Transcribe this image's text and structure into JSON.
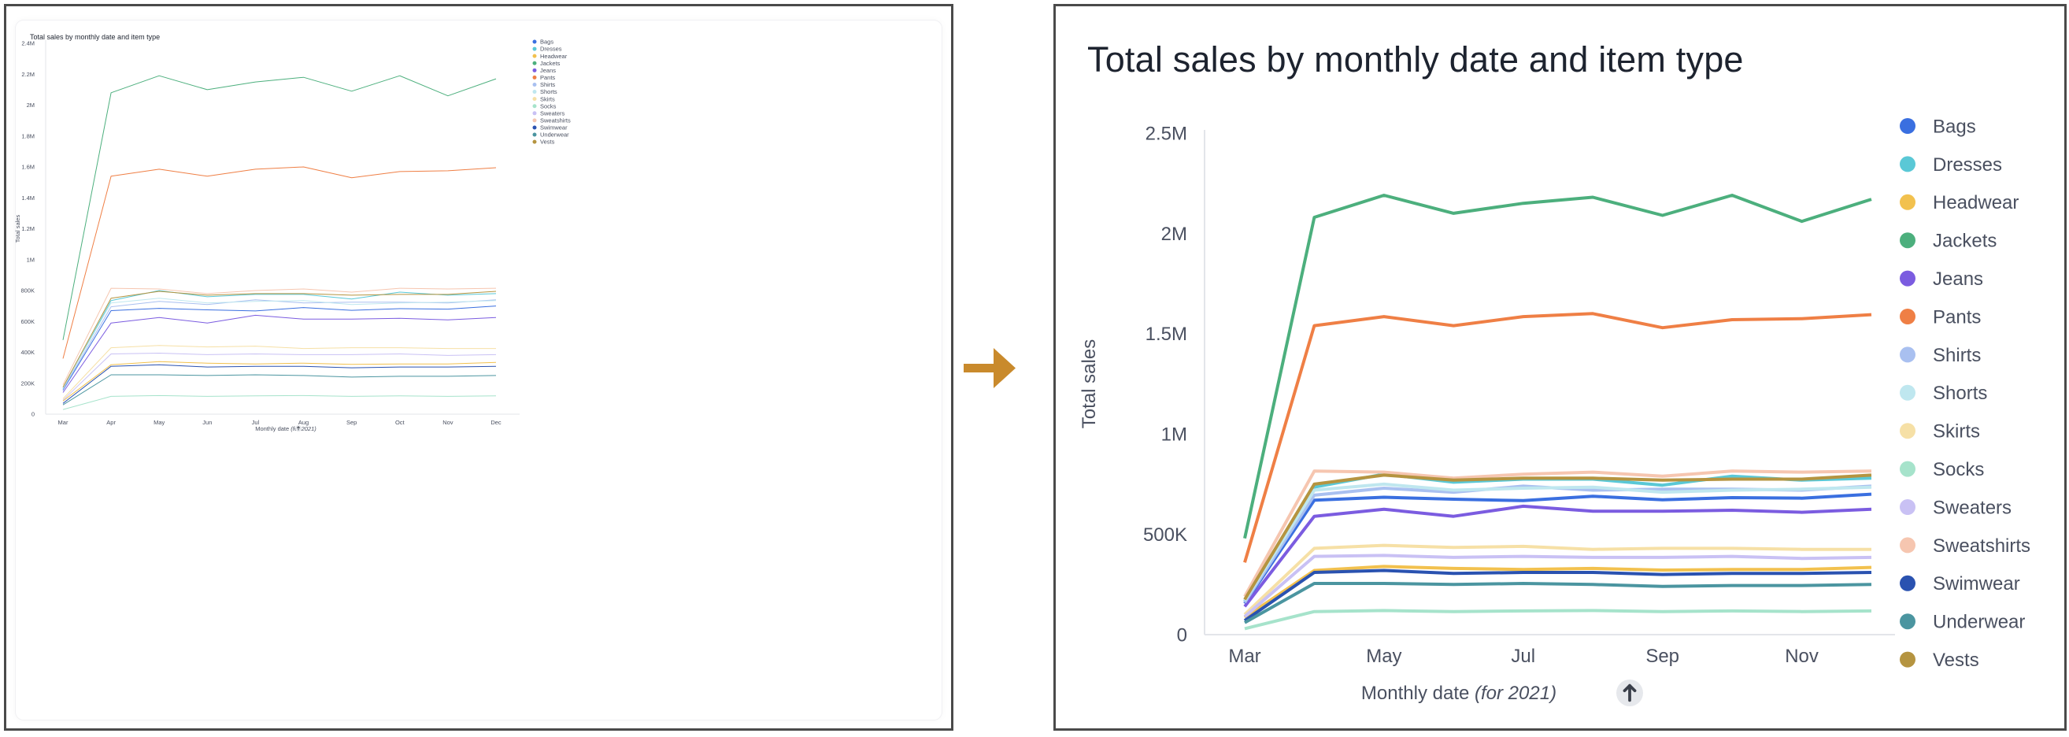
{
  "chart_data": [
    {
      "type": "line",
      "title": "Total sales by monthly date and item type",
      "xlabel": "Monthly date",
      "xlabel_qualifier": "(for 2021)",
      "ylabel": "Total sales",
      "categories": [
        "Mar",
        "Apr",
        "May",
        "Jun",
        "Jul",
        "Aug",
        "Sep",
        "Oct",
        "Nov",
        "Dec"
      ],
      "y_ticks": [
        {
          "value": 0,
          "label": "0"
        },
        {
          "value": 200000,
          "label": "200K"
        },
        {
          "value": 400000,
          "label": "400K"
        },
        {
          "value": 600000,
          "label": "600K"
        },
        {
          "value": 800000,
          "label": "800K"
        },
        {
          "value": 1000000,
          "label": "1M"
        },
        {
          "value": 1200000,
          "label": "1.2M"
        },
        {
          "value": 1400000,
          "label": "1.4M"
        },
        {
          "value": 1600000,
          "label": "1.6M"
        },
        {
          "value": 1800000,
          "label": "1.8M"
        },
        {
          "value": 2000000,
          "label": "2M"
        },
        {
          "value": 2200000,
          "label": "2.2M"
        },
        {
          "value": 2400000,
          "label": "2.4M"
        }
      ],
      "x_tick_labels": [
        "Mar",
        "Apr",
        "May",
        "Jun",
        "Jul",
        "Aug",
        "Sep",
        "Oct",
        "Nov",
        "Dec"
      ],
      "ylim": [
        0,
        2400000
      ],
      "grid": false,
      "legend_position": "right",
      "series": [
        {
          "name": "Bags",
          "color": "#3a6fe0",
          "values": [
            155000,
            670000,
            685000,
            675000,
            668000,
            690000,
            672000,
            683000,
            680000,
            700000
          ]
        },
        {
          "name": "Dresses",
          "color": "#5ac8d6",
          "values": [
            165000,
            735000,
            800000,
            760000,
            775000,
            775000,
            745000,
            790000,
            770000,
            780000
          ]
        },
        {
          "name": "Headwear",
          "color": "#f2c14e",
          "values": [
            85000,
            320000,
            340000,
            330000,
            325000,
            330000,
            322000,
            325000,
            325000,
            335000
          ]
        },
        {
          "name": "Jackets",
          "color": "#4caf7d",
          "values": [
            480000,
            2080000,
            2190000,
            2100000,
            2150000,
            2180000,
            2090000,
            2190000,
            2060000,
            2170000
          ]
        },
        {
          "name": "Jeans",
          "color": "#7b5ce0",
          "values": [
            140000,
            590000,
            625000,
            590000,
            640000,
            615000,
            615000,
            620000,
            610000,
            625000
          ]
        },
        {
          "name": "Pants",
          "color": "#ef7f45",
          "values": [
            360000,
            1540000,
            1585000,
            1540000,
            1585000,
            1600000,
            1530000,
            1570000,
            1575000,
            1595000
          ]
        },
        {
          "name": "Shirts",
          "color": "#a9c0f0",
          "values": [
            160000,
            695000,
            730000,
            710000,
            740000,
            720000,
            725000,
            725000,
            720000,
            740000
          ]
        },
        {
          "name": "Shorts",
          "color": "#bfe7ef",
          "values": [
            170000,
            720000,
            750000,
            720000,
            730000,
            735000,
            710000,
            720000,
            725000,
            735000
          ]
        },
        {
          "name": "Skirts",
          "color": "#f6e0a6",
          "values": [
            100000,
            430000,
            445000,
            435000,
            440000,
            425000,
            430000,
            430000,
            425000,
            425000
          ]
        },
        {
          "name": "Socks",
          "color": "#a6e3cb",
          "values": [
            30000,
            115000,
            120000,
            115000,
            118000,
            120000,
            115000,
            118000,
            115000,
            118000
          ]
        },
        {
          "name": "Sweaters",
          "color": "#c9c1f4",
          "values": [
            90000,
            390000,
            395000,
            385000,
            390000,
            385000,
            385000,
            390000,
            380000,
            385000
          ]
        },
        {
          "name": "Sweatshirts",
          "color": "#f6c6b0",
          "values": [
            190000,
            815000,
            810000,
            780000,
            800000,
            810000,
            790000,
            815000,
            810000,
            815000
          ]
        },
        {
          "name": "Swimwear",
          "color": "#2a52b0",
          "values": [
            70000,
            310000,
            320000,
            305000,
            310000,
            310000,
            300000,
            305000,
            305000,
            310000
          ]
        },
        {
          "name": "Underwear",
          "color": "#4b95a0",
          "values": [
            60000,
            255000,
            255000,
            250000,
            255000,
            250000,
            240000,
            245000,
            245000,
            250000
          ]
        },
        {
          "name": "Vests",
          "color": "#b59440",
          "values": [
            175000,
            750000,
            795000,
            770000,
            780000,
            780000,
            770000,
            775000,
            775000,
            795000
          ]
        }
      ]
    },
    {
      "type": "line",
      "title": "Total sales by monthly date and item type",
      "xlabel": "Monthly date",
      "xlabel_qualifier": "(for 2021)",
      "ylabel": "Total sales",
      "categories": [
        "Mar",
        "Apr",
        "May",
        "Jun",
        "Jul",
        "Aug",
        "Sep",
        "Oct",
        "Nov",
        "Dec"
      ],
      "y_ticks": [
        {
          "value": 0,
          "label": "0"
        },
        {
          "value": 500000,
          "label": "500K"
        },
        {
          "value": 1000000,
          "label": "1M"
        },
        {
          "value": 1500000,
          "label": "1.5M"
        },
        {
          "value": 2000000,
          "label": "2M"
        },
        {
          "value": 2500000,
          "label": "2.5M"
        }
      ],
      "x_tick_labels": [
        "Mar",
        "",
        "May",
        "",
        "Jul",
        "",
        "Sep",
        "",
        "Nov",
        ""
      ],
      "ylim": [
        0,
        2500000
      ],
      "grid": false,
      "legend_position": "right",
      "series": [
        {
          "name": "Bags",
          "color": "#3a6fe0",
          "values": [
            155000,
            670000,
            685000,
            675000,
            668000,
            690000,
            672000,
            683000,
            680000,
            700000
          ]
        },
        {
          "name": "Dresses",
          "color": "#5ac8d6",
          "values": [
            165000,
            735000,
            800000,
            760000,
            775000,
            775000,
            745000,
            790000,
            770000,
            780000
          ]
        },
        {
          "name": "Headwear",
          "color": "#f2c14e",
          "values": [
            85000,
            320000,
            340000,
            330000,
            325000,
            330000,
            322000,
            325000,
            325000,
            335000
          ]
        },
        {
          "name": "Jackets",
          "color": "#4caf7d",
          "values": [
            480000,
            2080000,
            2190000,
            2100000,
            2150000,
            2180000,
            2090000,
            2190000,
            2060000,
            2170000
          ]
        },
        {
          "name": "Jeans",
          "color": "#7b5ce0",
          "values": [
            140000,
            590000,
            625000,
            590000,
            640000,
            615000,
            615000,
            620000,
            610000,
            625000
          ]
        },
        {
          "name": "Pants",
          "color": "#ef7f45",
          "values": [
            360000,
            1540000,
            1585000,
            1540000,
            1585000,
            1600000,
            1530000,
            1570000,
            1575000,
            1595000
          ]
        },
        {
          "name": "Shirts",
          "color": "#a9c0f0",
          "values": [
            160000,
            695000,
            730000,
            710000,
            740000,
            720000,
            725000,
            725000,
            720000,
            740000
          ]
        },
        {
          "name": "Shorts",
          "color": "#bfe7ef",
          "values": [
            170000,
            720000,
            750000,
            720000,
            730000,
            735000,
            710000,
            720000,
            725000,
            735000
          ]
        },
        {
          "name": "Skirts",
          "color": "#f6e0a6",
          "values": [
            100000,
            430000,
            445000,
            435000,
            440000,
            425000,
            430000,
            430000,
            425000,
            425000
          ]
        },
        {
          "name": "Socks",
          "color": "#a6e3cb",
          "values": [
            30000,
            115000,
            120000,
            115000,
            118000,
            120000,
            115000,
            118000,
            115000,
            118000
          ]
        },
        {
          "name": "Sweaters",
          "color": "#c9c1f4",
          "values": [
            90000,
            390000,
            395000,
            385000,
            390000,
            385000,
            385000,
            390000,
            380000,
            385000
          ]
        },
        {
          "name": "Sweatshirts",
          "color": "#f6c6b0",
          "values": [
            190000,
            815000,
            810000,
            780000,
            800000,
            810000,
            790000,
            815000,
            810000,
            815000
          ]
        },
        {
          "name": "Swimwear",
          "color": "#2a52b0",
          "values": [
            70000,
            310000,
            320000,
            305000,
            310000,
            310000,
            300000,
            305000,
            305000,
            310000
          ]
        },
        {
          "name": "Underwear",
          "color": "#4b95a0",
          "values": [
            60000,
            255000,
            255000,
            250000,
            255000,
            250000,
            240000,
            245000,
            245000,
            250000
          ]
        },
        {
          "name": "Vests",
          "color": "#b59440",
          "values": [
            175000,
            750000,
            795000,
            770000,
            780000,
            780000,
            770000,
            775000,
            775000,
            795000
          ]
        }
      ]
    }
  ],
  "arrow_color": "#c98a2c",
  "sort_icon": "up-arrow-icon"
}
